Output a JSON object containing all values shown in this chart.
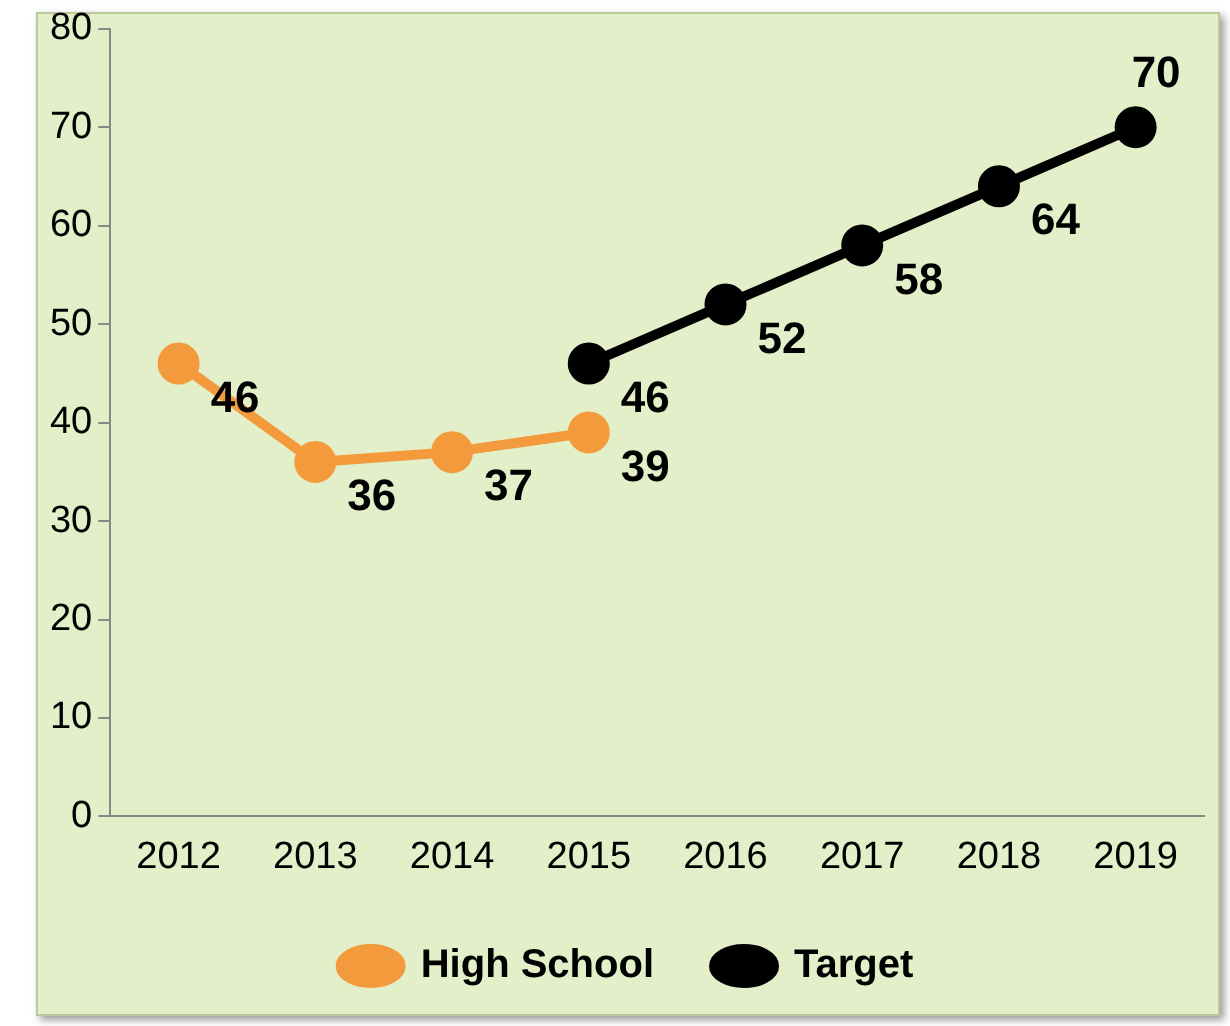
{
  "chart_data": {
    "type": "line",
    "categories": [
      "2012",
      "2013",
      "2014",
      "2015",
      "2016",
      "2017",
      "2018",
      "2019"
    ],
    "series": [
      {
        "name": "High School",
        "color": "#f39a3c",
        "values": [
          46,
          36,
          37,
          39,
          null,
          null,
          null,
          null
        ]
      },
      {
        "name": "Target",
        "color": "#000000",
        "values": [
          null,
          null,
          null,
          46,
          52,
          58,
          64,
          70
        ]
      }
    ],
    "ylim": [
      0,
      80
    ],
    "yticks": [
      0,
      10,
      20,
      30,
      40,
      50,
      60,
      70,
      80
    ],
    "grid": false,
    "legend": "bottom",
    "marker": "circle",
    "line_style": "solid",
    "data_labels": true
  }
}
